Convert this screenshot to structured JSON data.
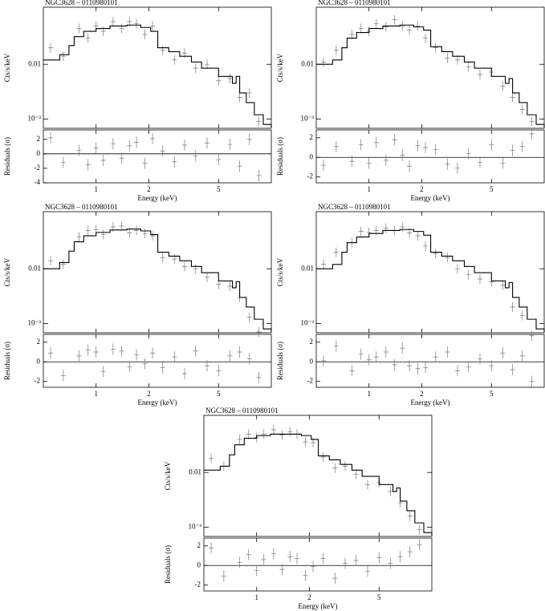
{
  "chart_data": [
    {
      "type": "spectrum",
      "title": "NGC3628 – 0110980101",
      "xlabel": "Energy (keV)",
      "ylabel": "Cts/s/keV",
      "residual_ylabel": "Residuals (σ)",
      "log_x": true,
      "log_y": true,
      "xlim": [
        0.5,
        10
      ],
      "xticks": [
        1,
        2,
        5
      ],
      "ylim": [
        0.00068,
        0.11
      ],
      "yticks": [
        {
          "value": 0.001,
          "label": "10⁻³"
        },
        0.01
      ],
      "model": {
        "color": "#000000",
        "x": [
          0.5,
          0.62,
          0.7,
          0.75,
          0.85,
          1,
          1.2,
          1.5,
          1.8,
          2.05,
          2.25,
          2.6,
          3,
          3.5,
          4,
          5,
          6,
          6.3,
          6.6,
          7.2,
          8,
          9,
          10
        ],
        "values": [
          0.012,
          0.015,
          0.022,
          0.032,
          0.04,
          0.045,
          0.05,
          0.052,
          0.047,
          0.04,
          0.02,
          0.017,
          0.014,
          0.011,
          0.0085,
          0.006,
          0.0045,
          0.006,
          0.003,
          0.002,
          0.0012,
          0.0008,
          0.0007
        ]
      },
      "data": {
        "color": "#777777",
        "x": [
          0.55,
          0.65,
          0.8,
          0.9,
          1.0,
          1.1,
          1.25,
          1.4,
          1.55,
          1.7,
          1.9,
          2.1,
          2.4,
          2.8,
          3.2,
          3.7,
          4.3,
          5,
          5.8,
          6.6,
          7.5,
          8.5
        ],
        "values": [
          0.02,
          0.014,
          0.045,
          0.03,
          0.05,
          0.04,
          0.06,
          0.045,
          0.06,
          0.055,
          0.035,
          0.05,
          0.018,
          0.012,
          0.016,
          0.0085,
          0.01,
          0.005,
          0.0055,
          0.0025,
          0.003,
          0.0009
        ]
      },
      "residuals": {
        "ylim": [
          -4,
          3.3
        ],
        "yticks": [
          -4,
          -2,
          0,
          2
        ],
        "values": [
          2.2,
          -1.2,
          0.5,
          -1.5,
          0.8,
          -0.9,
          1.4,
          -0.6,
          1.1,
          1.6,
          -1.3,
          2.1,
          0.4,
          -1.1,
          1.2,
          -0.3,
          1.5,
          -0.8,
          1.3,
          -1.7,
          2.0,
          -3.0
        ]
      }
    },
    {
      "type": "spectrum",
      "title": "NGC3628 – 0110980101",
      "xlabel": "Energy (keV)",
      "ylabel": "Cts/s/keV",
      "residual_ylabel": "Residuals (σ)",
      "log_x": true,
      "log_y": true,
      "xlim": [
        0.5,
        10
      ],
      "xticks": [
        1,
        2,
        5
      ],
      "ylim": [
        0.00068,
        0.11
      ],
      "yticks": [
        {
          "value": 0.001,
          "label": "10⁻³"
        },
        0.01
      ],
      "model": {
        "color": "#000000",
        "x": [
          0.5,
          0.62,
          0.7,
          0.75,
          0.85,
          1,
          1.2,
          1.5,
          1.8,
          2.05,
          2.25,
          2.6,
          3,
          3.5,
          4,
          5,
          6,
          6.3,
          6.6,
          7.2,
          8,
          9,
          10
        ],
        "values": [
          0.01,
          0.012,
          0.02,
          0.03,
          0.038,
          0.045,
          0.05,
          0.052,
          0.048,
          0.042,
          0.021,
          0.017,
          0.014,
          0.011,
          0.0085,
          0.006,
          0.0045,
          0.0055,
          0.003,
          0.002,
          0.0012,
          0.0008,
          0.0007
        ]
      },
      "data": {
        "color": "#777777",
        "x": [
          0.55,
          0.65,
          0.8,
          0.9,
          1.0,
          1.1,
          1.25,
          1.4,
          1.55,
          1.7,
          1.9,
          2.1,
          2.4,
          2.8,
          3.2,
          3.7,
          4.3,
          5,
          5.8,
          6.6,
          7.5,
          8.5
        ],
        "values": [
          0.011,
          0.018,
          0.035,
          0.045,
          0.04,
          0.055,
          0.048,
          0.065,
          0.05,
          0.042,
          0.05,
          0.03,
          0.02,
          0.013,
          0.012,
          0.009,
          0.0065,
          0.0072,
          0.004,
          0.0025,
          0.0015,
          0.0009
        ]
      },
      "residuals": {
        "ylim": [
          -2.6,
          2.8
        ],
        "yticks": [
          -2,
          0,
          2
        ],
        "values": [
          -0.8,
          1.1,
          -0.4,
          1.3,
          -0.6,
          1.5,
          -0.3,
          1.8,
          0.2,
          -0.9,
          1.2,
          1.0,
          0.8,
          -0.7,
          -1.1,
          0.4,
          -0.5,
          1.3,
          -0.6,
          0.7,
          1.1,
          2.4
        ]
      }
    },
    {
      "type": "spectrum",
      "title": "NGC3628 – 0110980101",
      "xlabel": "Energy (keV)",
      "ylabel": "Cts/s/keV",
      "residual_ylabel": "Residuals (σ)",
      "log_x": true,
      "log_y": true,
      "xlim": [
        0.5,
        10
      ],
      "xticks": [
        1,
        2,
        5
      ],
      "ylim": [
        0.00068,
        0.11
      ],
      "yticks": [
        {
          "value": 0.001,
          "label": "10⁻³"
        },
        0.01
      ],
      "model": {
        "color": "#000000",
        "x": [
          0.5,
          0.62,
          0.7,
          0.75,
          0.85,
          1,
          1.2,
          1.5,
          1.8,
          2.05,
          2.25,
          2.6,
          3,
          3.5,
          4,
          5,
          6,
          6.3,
          6.6,
          7.2,
          8,
          9,
          10
        ],
        "values": [
          0.01,
          0.013,
          0.021,
          0.031,
          0.04,
          0.046,
          0.051,
          0.053,
          0.049,
          0.042,
          0.02,
          0.017,
          0.014,
          0.011,
          0.0085,
          0.006,
          0.0045,
          0.0058,
          0.003,
          0.002,
          0.0012,
          0.0008,
          0.0007
        ]
      },
      "data": {
        "color": "#777777",
        "x": [
          0.55,
          0.65,
          0.8,
          0.9,
          1.0,
          1.1,
          1.25,
          1.4,
          1.55,
          1.7,
          1.9,
          2.1,
          2.4,
          2.8,
          3.2,
          3.7,
          4.3,
          5,
          5.8,
          6.6,
          7.5,
          8.5
        ],
        "values": [
          0.014,
          0.012,
          0.038,
          0.05,
          0.052,
          0.042,
          0.058,
          0.06,
          0.045,
          0.05,
          0.044,
          0.04,
          0.016,
          0.015,
          0.011,
          0.01,
          0.007,
          0.0052,
          0.0048,
          0.003,
          0.0013,
          0.0007
        ]
      },
      "residuals": {
        "ylim": [
          -2.6,
          2.8
        ],
        "yticks": [
          -2,
          0,
          2
        ],
        "values": [
          0.9,
          -1.4,
          0.6,
          1.2,
          1.0,
          -1.0,
          1.3,
          1.1,
          -0.5,
          0.7,
          -0.2,
          0.9,
          -0.6,
          0.5,
          -1.2,
          1.1,
          -0.4,
          -0.9,
          0.6,
          1.0,
          0.3,
          -1.6
        ]
      }
    },
    {
      "type": "spectrum",
      "title": "NGC3628 – 0110980101",
      "xlabel": "Energy (keV)",
      "ylabel": "Cts/s/keV",
      "residual_ylabel": "Residuals (σ)",
      "log_x": true,
      "log_y": true,
      "xlim": [
        0.5,
        10
      ],
      "xticks": [
        1,
        2,
        5
      ],
      "ylim": [
        0.00068,
        0.11
      ],
      "yticks": [
        {
          "value": 0.001,
          "label": "10⁻³"
        },
        0.01
      ],
      "model": {
        "color": "#000000",
        "x": [
          0.5,
          0.62,
          0.7,
          0.75,
          0.85,
          1,
          1.2,
          1.5,
          1.8,
          2.05,
          2.25,
          2.6,
          3,
          3.5,
          4,
          5,
          6,
          6.3,
          6.6,
          7.2,
          8,
          9,
          10
        ],
        "values": [
          0.01,
          0.012,
          0.02,
          0.03,
          0.038,
          0.044,
          0.05,
          0.052,
          0.048,
          0.041,
          0.02,
          0.017,
          0.014,
          0.011,
          0.0085,
          0.006,
          0.0045,
          0.0056,
          0.003,
          0.002,
          0.0012,
          0.0008,
          0.0007
        ]
      },
      "data": {
        "color": "#777777",
        "x": [
          0.55,
          0.65,
          0.8,
          0.9,
          1.0,
          1.1,
          1.25,
          1.4,
          1.55,
          1.7,
          1.9,
          2.1,
          2.4,
          2.8,
          3.2,
          3.7,
          4.3,
          5,
          5.8,
          6.6,
          7.5,
          8.5
        ],
        "values": [
          0.012,
          0.02,
          0.03,
          0.048,
          0.046,
          0.05,
          0.055,
          0.05,
          0.058,
          0.045,
          0.04,
          0.026,
          0.019,
          0.016,
          0.01,
          0.0078,
          0.0065,
          0.0058,
          0.005,
          0.002,
          0.0014,
          0.0006
        ]
      },
      "residuals": {
        "ylim": [
          -2.6,
          2.8
        ],
        "yticks": [
          -2,
          0,
          2
        ],
        "values": [
          0.1,
          1.6,
          -0.9,
          0.8,
          0.2,
          0.5,
          1.0,
          -0.3,
          1.4,
          -0.4,
          -0.7,
          -0.6,
          0.5,
          1.0,
          -0.9,
          -0.5,
          0.3,
          -0.4,
          0.9,
          -0.8,
          0.6,
          -2.0
        ]
      }
    },
    {
      "type": "spectrum",
      "title": "NGC3628 – 0110980101",
      "xlabel": "Energy (keV)",
      "ylabel": "Cts/s/keV",
      "residual_ylabel": "Residuals (σ)",
      "log_x": true,
      "log_y": true,
      "xlim": [
        0.5,
        10
      ],
      "xticks": [
        1,
        2,
        5
      ],
      "ylim": [
        0.00068,
        0.11
      ],
      "yticks": [
        {
          "value": 0.001,
          "label": "10⁻³"
        },
        0.01
      ],
      "model": {
        "color": "#000000",
        "x": [
          0.5,
          0.62,
          0.7,
          0.75,
          0.85,
          1,
          1.2,
          1.5,
          1.8,
          2.05,
          2.25,
          2.6,
          3,
          3.5,
          4,
          5,
          6,
          6.3,
          6.6,
          7.2,
          8,
          9,
          10
        ],
        "values": [
          0.011,
          0.013,
          0.021,
          0.032,
          0.042,
          0.047,
          0.05,
          0.05,
          0.047,
          0.04,
          0.02,
          0.017,
          0.014,
          0.011,
          0.0085,
          0.006,
          0.0045,
          0.0052,
          0.003,
          0.002,
          0.0012,
          0.0008,
          0.0007
        ]
      },
      "data": {
        "color": "#777777",
        "x": [
          0.55,
          0.65,
          0.8,
          0.9,
          1.0,
          1.1,
          1.25,
          1.4,
          1.55,
          1.7,
          1.9,
          2.1,
          2.4,
          2.8,
          3.2,
          3.7,
          4.3,
          5,
          5.8,
          6.6,
          7.5,
          8.5
        ],
        "values": [
          0.018,
          0.013,
          0.04,
          0.05,
          0.043,
          0.05,
          0.06,
          0.048,
          0.055,
          0.05,
          0.036,
          0.035,
          0.019,
          0.012,
          0.013,
          0.0092,
          0.006,
          0.0065,
          0.0045,
          0.0028,
          0.0016,
          0.0009
        ]
      },
      "residuals": {
        "ylim": [
          -2.6,
          2.8
        ],
        "yticks": [
          -2,
          0,
          2
        ],
        "values": [
          1.8,
          -1.1,
          0.3,
          1.1,
          -0.5,
          0.6,
          1.2,
          -0.4,
          0.9,
          0.7,
          -1.0,
          -0.1,
          0.7,
          -1.3,
          0.2,
          0.5,
          -0.6,
          0.8,
          0.2,
          0.9,
          1.4,
          2.1
        ]
      }
    }
  ]
}
